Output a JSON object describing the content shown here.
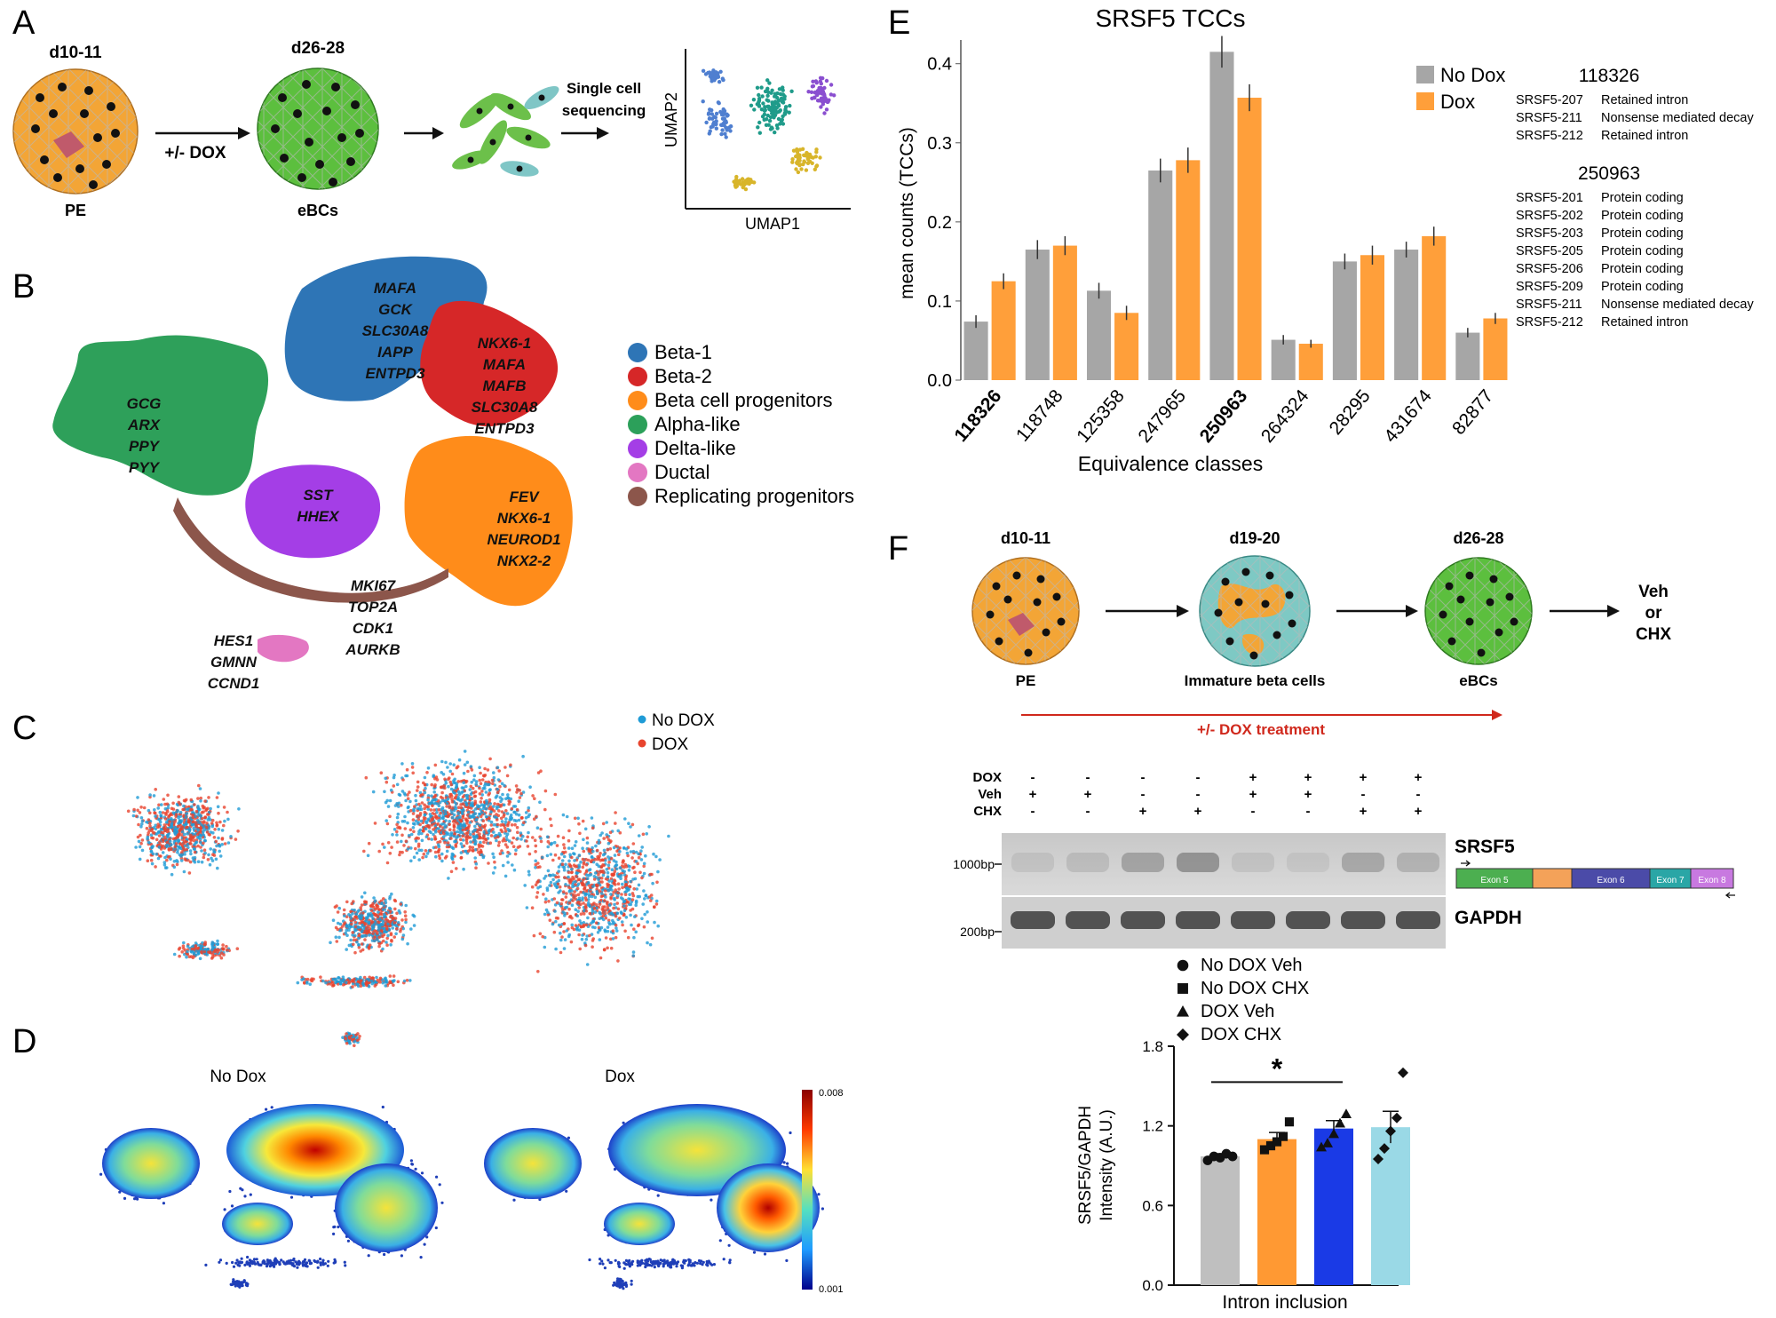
{
  "panels": {
    "labels": [
      "A",
      "B",
      "C",
      "D",
      "E",
      "F"
    ]
  },
  "panel_a": {
    "stage1": "d10-11",
    "stage1_name": "PE",
    "arrow_label": "+/- DOX",
    "stage2": "d26-28",
    "stage2_name": "eBCs",
    "seq_label_1": "Single cell",
    "seq_label_2": "sequencing",
    "umap_x": "UMAP1",
    "umap_y": "UMAP2"
  },
  "panel_b": {
    "cluster_genes": {
      "beta1": [
        "MAFA",
        "GCK",
        "SLC30A8",
        "IAPP",
        "ENTPD3"
      ],
      "beta2": [
        "NKX6-1",
        "MAFA",
        "MAFB",
        "SLC30A8",
        "ENTPD3"
      ],
      "alpha": [
        "GCG",
        "ARX",
        "PPY",
        "PYY"
      ],
      "delta": [
        "SST",
        "HHEX"
      ],
      "progenitor": [
        "FEV",
        "NKX6-1",
        "NEUROD1",
        "NKX2-2"
      ],
      "replicating": [
        "MKI67",
        "TOP2A",
        "CDK1",
        "AURKB"
      ],
      "ductal": [
        "HES1",
        "GMNN",
        "CCND1"
      ]
    },
    "legend": [
      {
        "label": "Beta-1",
        "color": "#2e75b6"
      },
      {
        "label": "Beta-2",
        "color": "#d62728"
      },
      {
        "label": "Beta cell progenitors",
        "color": "#ff8c1a"
      },
      {
        "label": "Alpha-like",
        "color": "#2ca05a"
      },
      {
        "label": "Delta-like",
        "color": "#a43ee6"
      },
      {
        "label": "Ductal",
        "color": "#e377c2"
      },
      {
        "label": "Replicating progenitors",
        "color": "#8c564b"
      }
    ]
  },
  "panel_c": {
    "legend": [
      {
        "label": "No DOX",
        "color": "#1f9bd6"
      },
      {
        "label": "DOX",
        "color": "#e8442e"
      }
    ]
  },
  "panel_d": {
    "left_title": "No Dox",
    "right_title": "Dox",
    "scale_max": "0.008",
    "scale_min": "0.001"
  },
  "panel_e": {
    "chart_data": {
      "type": "bar",
      "title": "SRSF5 TCCs",
      "xlabel": "Equivalence classes",
      "ylabel": "mean counts (TCCs)",
      "ylim": [
        0,
        0.43
      ],
      "yticks": [
        "0.0",
        "0.1",
        "0.2",
        "0.3",
        "0.4"
      ],
      "categories": [
        "118326",
        "118748",
        "125358",
        "247965",
        "250963",
        "264324",
        "28295",
        "431674",
        "82877"
      ],
      "bold_categories": [
        "118326",
        "250963"
      ],
      "series": [
        {
          "name": "No Dox",
          "color": "#a6a6a6",
          "values": [
            0.074,
            0.165,
            0.113,
            0.265,
            0.415,
            0.051,
            0.15,
            0.165,
            0.06
          ],
          "errors": [
            0.008,
            0.012,
            0.01,
            0.015,
            0.02,
            0.006,
            0.01,
            0.01,
            0.006
          ]
        },
        {
          "name": "Dox",
          "color": "#ff9f3a",
          "values": [
            0.125,
            0.17,
            0.085,
            0.278,
            0.357,
            0.046,
            0.158,
            0.182,
            0.078
          ],
          "errors": [
            0.01,
            0.012,
            0.009,
            0.016,
            0.017,
            0.005,
            0.012,
            0.012,
            0.007
          ]
        }
      ],
      "legend_position": "top-right"
    },
    "annotation_groups": [
      {
        "id": "118326",
        "rows": [
          [
            "SRSF5-207",
            "Retained intron"
          ],
          [
            "SRSF5-211",
            "Nonsense mediated decay"
          ],
          [
            "SRSF5-212",
            "Retained intron"
          ]
        ]
      },
      {
        "id": "250963",
        "rows": [
          [
            "SRSF5-201",
            "Protein coding"
          ],
          [
            "SRSF5-202",
            "Protein coding"
          ],
          [
            "SRSF5-203",
            "Protein coding"
          ],
          [
            "SRSF5-205",
            "Protein coding"
          ],
          [
            "SRSF5-206",
            "Protein coding"
          ],
          [
            "SRSF5-209",
            "Protein coding"
          ],
          [
            "SRSF5-211",
            "Nonsense mediated decay"
          ],
          [
            "SRSF5-212",
            "Retained intron"
          ]
        ]
      }
    ]
  },
  "panel_f": {
    "stage1": "d10-11",
    "stage1_name": "PE",
    "stage2": "d19-20",
    "stage2_name": "Immature beta cells",
    "stage3": "d26-28",
    "stage3_name": "eBCs",
    "treat_1": "Veh",
    "treat_2": "or",
    "treat_3": "CHX",
    "dox_treatment": "+/- DOX treatment",
    "gel_rows": [
      {
        "label": "DOX",
        "marks": [
          "-",
          "-",
          "-",
          "-",
          "+",
          "+",
          "+",
          "+"
        ]
      },
      {
        "label": "Veh",
        "marks": [
          "+",
          "+",
          "-",
          "-",
          "+",
          "+",
          "-",
          "-"
        ]
      },
      {
        "label": "CHX",
        "marks": [
          "-",
          "-",
          "+",
          "+",
          "-",
          "-",
          "+",
          "+"
        ]
      }
    ],
    "ladder_top": "1000bp",
    "ladder_bottom": "200bp",
    "gene_top": "SRSF5",
    "gene_bottom": "GAPDH",
    "exons": [
      {
        "label": "Exon 5",
        "color": "#4caf50"
      },
      {
        "label": "",
        "color": "#f4a259"
      },
      {
        "label": "Exon 6",
        "color": "#4b4ba8"
      },
      {
        "label": "Exon 7",
        "color": "#2aa6a6"
      },
      {
        "label": "Exon 8",
        "color": "#c879e0"
      }
    ],
    "quant": {
      "chart_data": {
        "type": "bar",
        "ylabel": "SRSF5/GAPDH\nIntensity (A.U.)",
        "xlabel": "Intron inclusion",
        "yticks": [
          "0.0",
          "0.6",
          "1.2",
          "1.8"
        ],
        "ylim": [
          0,
          1.8
        ],
        "significance": "*",
        "series": [
          {
            "name": "No DOX Veh",
            "marker": "circle",
            "color": "#bfbfbf",
            "value": 0.97,
            "error": 0.02,
            "points": [
              0.94,
              0.97,
              0.96,
              0.99,
              0.97
            ]
          },
          {
            "name": "No DOX CHX",
            "marker": "square",
            "color": "#ff9933",
            "value": 1.1,
            "error": 0.05,
            "points": [
              1.02,
              1.05,
              1.08,
              1.12,
              1.23
            ]
          },
          {
            "name": "DOX Veh",
            "marker": "triangle",
            "color": "#1a3ae6",
            "value": 1.18,
            "error": 0.06,
            "points": [
              1.04,
              1.07,
              1.14,
              1.22,
              1.29
            ]
          },
          {
            "name": "DOX CHX",
            "marker": "diamond",
            "color": "#9ad9e6",
            "value": 1.19,
            "error": 0.12,
            "points": [
              0.95,
              1.03,
              1.16,
              1.26,
              1.6
            ]
          }
        ]
      }
    }
  }
}
